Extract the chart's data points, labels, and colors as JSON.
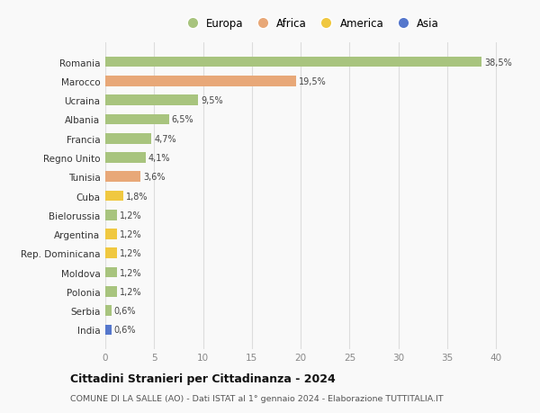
{
  "countries": [
    "Romania",
    "Marocco",
    "Ucraina",
    "Albania",
    "Francia",
    "Regno Unito",
    "Tunisia",
    "Cuba",
    "Bielorussia",
    "Argentina",
    "Rep. Dominicana",
    "Moldova",
    "Polonia",
    "Serbia",
    "India"
  ],
  "values": [
    38.5,
    19.5,
    9.5,
    6.5,
    4.7,
    4.1,
    3.6,
    1.8,
    1.2,
    1.2,
    1.2,
    1.2,
    1.2,
    0.6,
    0.6
  ],
  "labels": [
    "38,5%",
    "19,5%",
    "9,5%",
    "6,5%",
    "4,7%",
    "4,1%",
    "3,6%",
    "1,8%",
    "1,2%",
    "1,2%",
    "1,2%",
    "1,2%",
    "1,2%",
    "0,6%",
    "0,6%"
  ],
  "continents": [
    "Europa",
    "Africa",
    "Europa",
    "Europa",
    "Europa",
    "Europa",
    "Africa",
    "America",
    "Europa",
    "America",
    "America",
    "Europa",
    "Europa",
    "Europa",
    "Asia"
  ],
  "colors": {
    "Europa": "#a8c47e",
    "Africa": "#e8a878",
    "America": "#f0c840",
    "Asia": "#5577cc"
  },
  "xlim": [
    0,
    42
  ],
  "xticks": [
    0,
    5,
    10,
    15,
    20,
    25,
    30,
    35,
    40
  ],
  "title": "Cittadini Stranieri per Cittadinanza - 2024",
  "subtitle": "COMUNE DI LA SALLE (AO) - Dati ISTAT al 1° gennaio 2024 - Elaborazione TUTTITALIA.IT",
  "background_color": "#f9f9f9",
  "grid_color": "#dddddd",
  "bar_height": 0.55,
  "legend_order": [
    "Europa",
    "Africa",
    "America",
    "Asia"
  ]
}
